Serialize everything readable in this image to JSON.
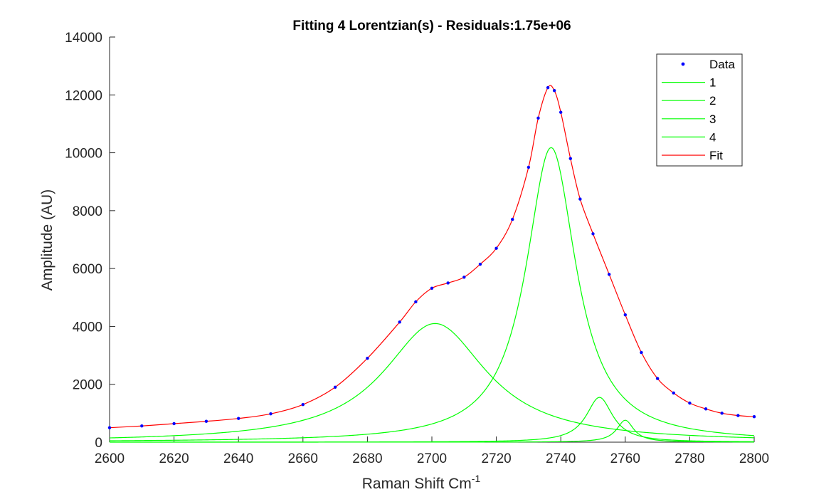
{
  "chart_data": {
    "type": "line",
    "title": "Fitting 4 Lorentzian(s) - Residuals:1.75e+06",
    "xlabel": "Raman Shift Cm",
    "xlabel_superscript": "-1",
    "ylabel": "Amplitude (AU)",
    "xlim": [
      2600,
      2800
    ],
    "ylim": [
      0,
      14000
    ],
    "xticks": [
      2600,
      2620,
      2640,
      2660,
      2680,
      2700,
      2720,
      2740,
      2760,
      2780,
      2800
    ],
    "yticks": [
      0,
      2000,
      4000,
      6000,
      8000,
      10000,
      12000,
      14000
    ],
    "grid": false,
    "legend_position": "top-right",
    "legend": [
      "Data",
      "1",
      "2",
      "3",
      "4",
      "Fit"
    ],
    "colors": {
      "data": "#0000ff",
      "components": "#00ff00",
      "fit": "#ff0000",
      "axis": "#262626"
    },
    "components": [
      {
        "name": "1",
        "center": 2701,
        "amplitude": 4100,
        "hwhm": 19.5
      },
      {
        "name": "2",
        "center": 2737,
        "amplitude": 10180,
        "hwhm": 9.5
      },
      {
        "name": "3",
        "center": 2752,
        "amplitude": 1550,
        "hwhm": 5.0
      },
      {
        "name": "4",
        "center": 2760,
        "amplitude": 760,
        "hwhm": 3.2
      }
    ],
    "data_points": {
      "x": [
        2600,
        2610,
        2620,
        2630,
        2640,
        2650,
        2660,
        2670,
        2680,
        2690,
        2695,
        2700,
        2705,
        2710,
        2715,
        2720,
        2725,
        2730,
        2733,
        2736,
        2738,
        2740,
        2743,
        2746,
        2750,
        2755,
        2760,
        2765,
        2770,
        2775,
        2780,
        2785,
        2790,
        2795,
        2800
      ],
      "y": [
        500,
        560,
        640,
        720,
        820,
        980,
        1300,
        1900,
        2900,
        4150,
        4850,
        5320,
        5500,
        5700,
        6150,
        6700,
        7700,
        9500,
        11200,
        12250,
        12150,
        11400,
        9800,
        8400,
        7200,
        5800,
        4400,
        3100,
        2200,
        1700,
        1350,
        1150,
        1000,
        920,
        880
      ]
    }
  }
}
